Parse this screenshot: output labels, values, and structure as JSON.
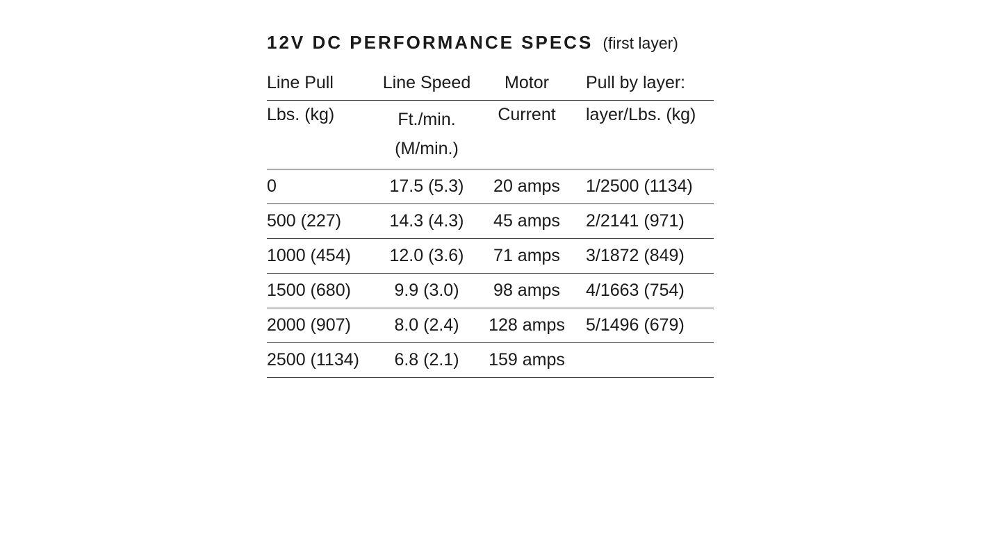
{
  "title": "12V DC PERFORMANCE SPECS",
  "note": "(first layer)",
  "table": {
    "header": [
      [
        "Line Pull",
        "Line Speed",
        "Motor",
        "Pull by layer:"
      ],
      [
        "Lbs. (kg)",
        "Ft./min. (M/min.)",
        "Current",
        "layer/Lbs. (kg)"
      ]
    ],
    "rows": [
      [
        "0",
        "17.5 (5.3)",
        "20 amps",
        "1/2500 (1134)"
      ],
      [
        "500 (227)",
        "14.3 (4.3)",
        "45 amps",
        "2/2141 (971)"
      ],
      [
        "1000 (454)",
        "12.0 (3.6)",
        "71 amps",
        "3/1872 (849)"
      ],
      [
        "1500 (680)",
        "9.9 (3.0)",
        "98 amps",
        "4/1663 (754)"
      ],
      [
        "2000 (907)",
        "8.0 (2.4)",
        "128 amps",
        "5/1496 (679)"
      ],
      [
        "2500 (1134)",
        "6.8 (2.1)",
        "159 amps"
      ]
    ]
  }
}
